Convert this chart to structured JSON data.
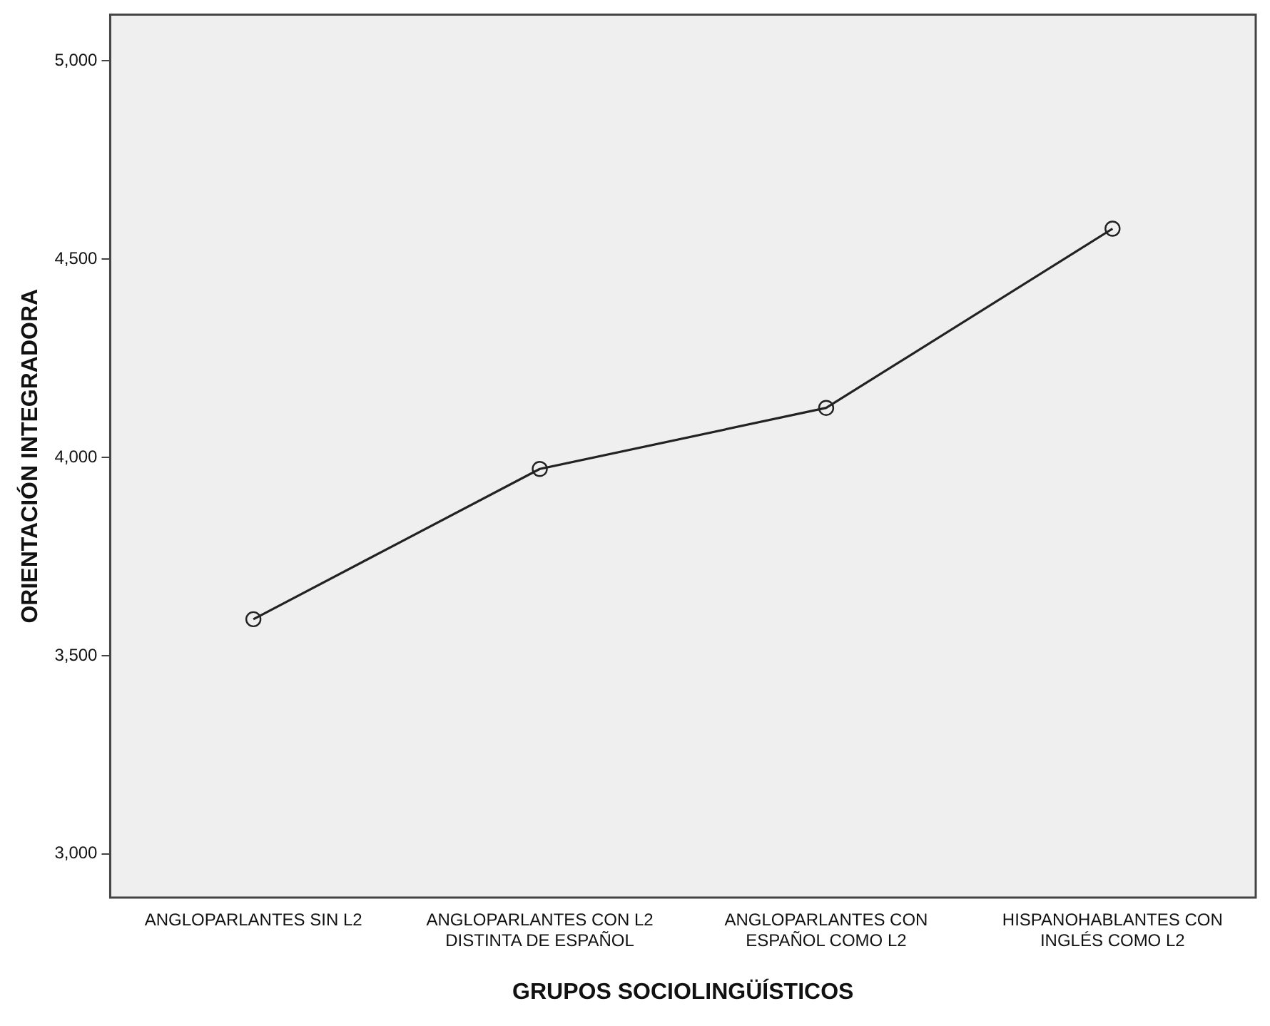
{
  "chart_data": {
    "type": "line",
    "xlabel": "GRUPOS SOCIOLINGÜÍSTICOS",
    "ylabel": "ORIENTACIÓN INTEGRADORA",
    "categories": [
      "ANGLOPARLANTES SIN L2",
      "ANGLOPARLANTES CON L2 DISTINTA DE ESPAÑOL",
      "ANGLOPARLANTES CON ESPAÑOL COMO L2",
      "HISPANOHABLANTES CON INGLÉS COMO L2"
    ],
    "series": [
      {
        "color": "#222222",
        "values": [
          3592,
          3971,
          4125,
          4577
        ]
      }
    ],
    "ylim": [
      2890,
      5117
    ],
    "yticks": [
      {
        "value": 3000,
        "label": "3,000"
      },
      {
        "value": 3500,
        "label": "3,500"
      },
      {
        "value": 4000,
        "label": "4,000"
      },
      {
        "value": 4500,
        "label": "4,500"
      },
      {
        "value": 5000,
        "label": "5,000"
      }
    ],
    "marker": "circle",
    "line_style": "solid",
    "grid": false,
    "legend": false
  }
}
